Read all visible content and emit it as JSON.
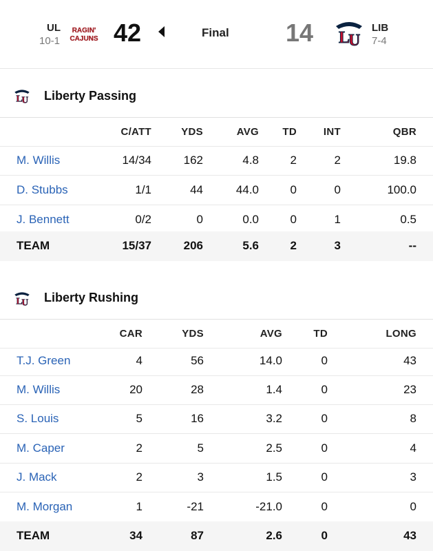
{
  "game": {
    "away": {
      "abbr": "UL",
      "record": "10-1",
      "score": "42",
      "logo_text_top": "RAGIN'",
      "logo_text_bottom": "CAJUNS"
    },
    "home": {
      "abbr": "LIB",
      "record": "7-4",
      "score": "14",
      "logo_text": "LU"
    },
    "status": "Final",
    "winner_indicator": "caret-left-icon"
  },
  "passing": {
    "title": "Liberty Passing",
    "columns": [
      "C/ATT",
      "YDS",
      "AVG",
      "TD",
      "INT",
      "QBR"
    ],
    "rows": [
      {
        "name": "M. Willis",
        "catt": "14/34",
        "yds": "162",
        "avg": "4.8",
        "td": "2",
        "int": "2",
        "qbr": "19.8"
      },
      {
        "name": "D. Stubbs",
        "catt": "1/1",
        "yds": "44",
        "avg": "44.0",
        "td": "0",
        "int": "0",
        "qbr": "100.0"
      },
      {
        "name": "J. Bennett",
        "catt": "0/2",
        "yds": "0",
        "avg": "0.0",
        "td": "0",
        "int": "1",
        "qbr": "0.5"
      }
    ],
    "team": {
      "name": "TEAM",
      "catt": "15/37",
      "yds": "206",
      "avg": "5.6",
      "td": "2",
      "int": "3",
      "qbr": "--"
    }
  },
  "rushing": {
    "title": "Liberty Rushing",
    "columns": [
      "CAR",
      "YDS",
      "AVG",
      "TD",
      "LONG"
    ],
    "rows": [
      {
        "name": "T.J. Green",
        "car": "4",
        "yds": "56",
        "avg": "14.0",
        "td": "0",
        "long": "43"
      },
      {
        "name": "M. Willis",
        "car": "20",
        "yds": "28",
        "avg": "1.4",
        "td": "0",
        "long": "23"
      },
      {
        "name": "S. Louis",
        "car": "5",
        "yds": "16",
        "avg": "3.2",
        "td": "0",
        "long": "8"
      },
      {
        "name": "M. Caper",
        "car": "2",
        "yds": "5",
        "avg": "2.5",
        "td": "0",
        "long": "4"
      },
      {
        "name": "J. Mack",
        "car": "2",
        "yds": "3",
        "avg": "1.5",
        "td": "0",
        "long": "3"
      },
      {
        "name": "M. Morgan",
        "car": "1",
        "yds": "-21",
        "avg": "-21.0",
        "td": "0",
        "long": "0"
      }
    ],
    "team": {
      "name": "TEAM",
      "car": "34",
      "yds": "87",
      "avg": "2.6",
      "td": "0",
      "long": "43"
    }
  },
  "colors": {
    "player_link": "#2a63b6",
    "liberty_red": "#c8102e",
    "liberty_navy": "#0a2240",
    "cajuns_red": "#a3242a"
  }
}
